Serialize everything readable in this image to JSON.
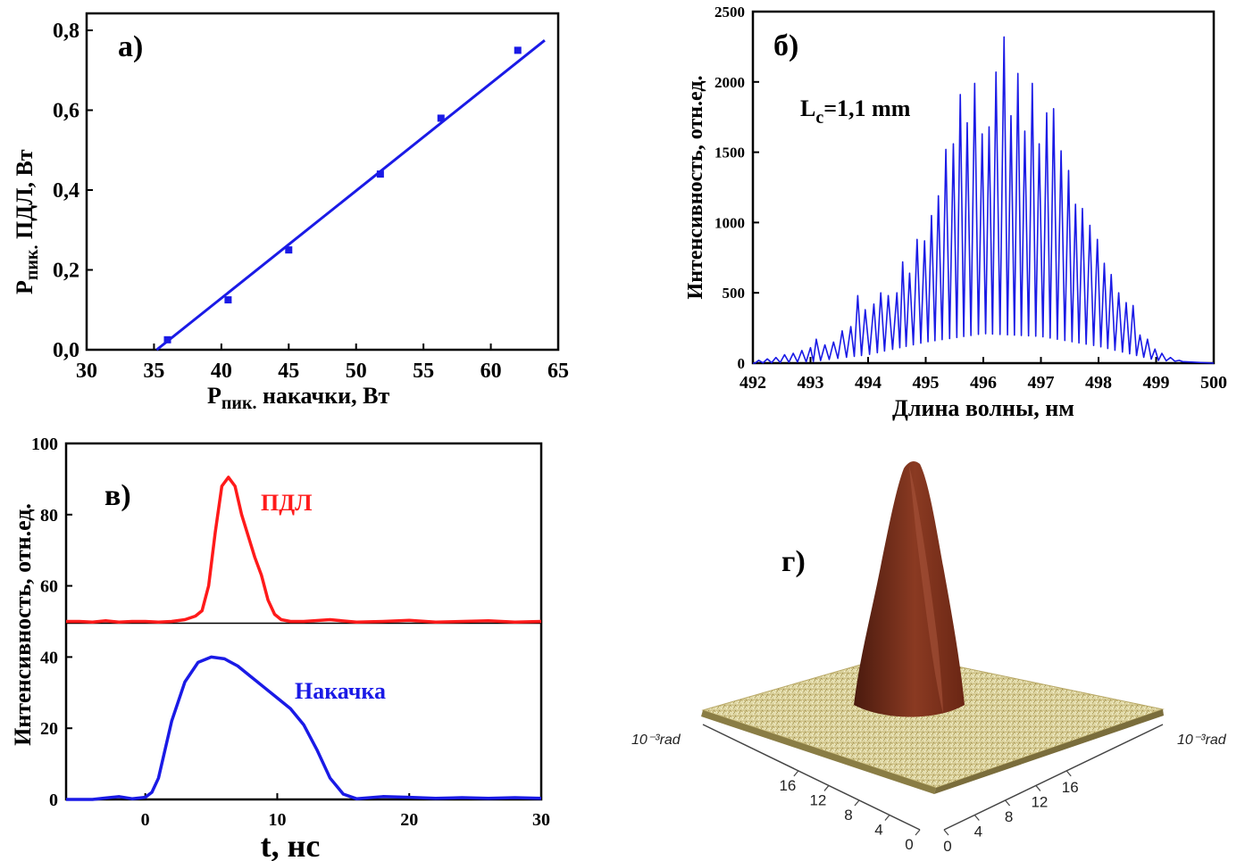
{
  "chart_data": [
    {
      "id": "a",
      "type": "scatter",
      "panel_label": "а)",
      "xlabel_main": "P",
      "xlabel_sub": "пик.",
      "xlabel_rest": " накачки, Вт",
      "ylabel_main": "P",
      "ylabel_sub": "пик.",
      "ylabel_rest": " ПДЛ, Вт",
      "xlim": [
        30,
        65
      ],
      "ylim": [
        0,
        0.8
      ],
      "xticks": [
        30,
        35,
        40,
        45,
        50,
        55,
        60,
        65
      ],
      "yticks": [
        0.0,
        0.2,
        0.4,
        0.6,
        0.8
      ],
      "ytick_labels": [
        "0,0",
        "0,2",
        "0,4",
        "0,6",
        "0,8"
      ],
      "points": {
        "x": [
          36.0,
          40.5,
          45.0,
          51.8,
          56.3,
          62.0
        ],
        "y": [
          0.025,
          0.125,
          0.25,
          0.44,
          0.58,
          0.75
        ]
      },
      "fit_line": {
        "x": [
          35.2,
          64.0
        ],
        "y": [
          0.0,
          0.775
        ]
      },
      "color": "#1a1ae6"
    },
    {
      "id": "b",
      "type": "line",
      "panel_label": "б)",
      "annotation_main": "L",
      "annotation_sub": "c",
      "annotation_rest": "=1,1 mm",
      "xlabel": "Длина волны, нм",
      "ylabel": "Интенсивность, отн.ед.",
      "xlim": [
        492,
        500
      ],
      "ylim": [
        0,
        2500
      ],
      "xticks": [
        492,
        493,
        494,
        495,
        496,
        497,
        498,
        499,
        500
      ],
      "yticks": [
        0,
        500,
        1000,
        1500,
        2000,
        2500
      ],
      "peak_wavelengths": [
        492.1,
        492.25,
        492.4,
        492.55,
        492.7,
        492.85,
        493.0,
        493.1,
        493.25,
        493.4,
        493.55,
        493.7,
        493.82,
        493.95,
        494.1,
        494.22,
        494.35,
        494.5,
        494.6,
        494.72,
        494.85,
        494.98,
        495.1,
        495.22,
        495.35,
        495.48,
        495.6,
        495.72,
        495.85,
        495.98,
        496.1,
        496.22,
        496.36,
        496.48,
        496.6,
        496.72,
        496.85,
        496.97,
        497.1,
        497.22,
        497.35,
        497.48,
        497.6,
        497.72,
        497.85,
        497.98,
        498.1,
        498.22,
        498.35,
        498.48,
        498.6,
        498.72,
        498.85,
        498.98,
        499.1,
        499.25,
        499.4
      ],
      "peak_values": [
        20,
        30,
        40,
        60,
        70,
        90,
        110,
        170,
        130,
        150,
        230,
        260,
        480,
        380,
        420,
        500,
        480,
        500,
        720,
        640,
        880,
        870,
        1050,
        1190,
        1520,
        1560,
        1910,
        1710,
        1990,
        1630,
        1680,
        2070,
        2320,
        1760,
        2060,
        1650,
        1990,
        1560,
        1780,
        1810,
        1510,
        1370,
        1130,
        1100,
        980,
        880,
        710,
        630,
        500,
        430,
        410,
        200,
        170,
        100,
        70,
        40,
        20
      ],
      "baseline": {
        "x": [
          492,
          493,
          494,
          495,
          496,
          497,
          498,
          499,
          500
        ],
        "y": [
          0,
          10,
          60,
          150,
          210,
          190,
          120,
          20,
          0
        ]
      },
      "color": "#1a1ae6"
    },
    {
      "id": "c",
      "type": "line",
      "panel_label": "в)",
      "xlabel": "t, нс",
      "ylabel": "Интенсивность, отн.ед.",
      "xlim": [
        -6,
        30
      ],
      "ylim": [
        0,
        100
      ],
      "xticks": [
        0,
        10,
        20,
        30
      ],
      "yticks": [
        0,
        20,
        40,
        60,
        80,
        100
      ],
      "divider_y": 49.5,
      "series": [
        {
          "name": "ПДЛ",
          "color": "#ff1a1a",
          "x": [
            -6,
            -5,
            -4,
            -3,
            -2,
            -1,
            0,
            1,
            2,
            3,
            3.8,
            4.3,
            4.8,
            5.3,
            5.8,
            6.3,
            6.8,
            7.3,
            7.8,
            8.3,
            8.8,
            9.3,
            9.8,
            10.3,
            11,
            12,
            14,
            16,
            18,
            20,
            22,
            24,
            26,
            28,
            30
          ],
          "y": [
            50,
            50,
            49.8,
            50.2,
            49.8,
            50,
            50,
            49.8,
            50,
            50.5,
            51.5,
            53,
            60,
            75,
            88,
            90.5,
            88,
            80,
            74,
            68,
            63,
            56,
            52,
            50.5,
            50,
            50,
            50.5,
            49.8,
            50,
            50.3,
            49.8,
            50,
            50.2,
            49.8,
            50
          ]
        },
        {
          "name": "Накачка",
          "color": "#1a1ae6",
          "x": [
            -6,
            -4,
            -3,
            -2,
            -1,
            0,
            0.5,
            1,
            1.5,
            2,
            3,
            4,
            5,
            6,
            7,
            8,
            9,
            10,
            11,
            12,
            13,
            14,
            15,
            16,
            18,
            20,
            22,
            24,
            26,
            28,
            30
          ],
          "y": [
            0,
            0,
            0.4,
            0.8,
            0.2,
            0.6,
            2,
            6,
            14,
            22,
            33,
            38.5,
            40,
            39.5,
            37.5,
            34.5,
            31.5,
            28.5,
            25.5,
            21,
            14,
            6,
            1.5,
            0.2,
            0.8,
            0.6,
            0.3,
            0.5,
            0.3,
            0.5,
            0.3
          ]
        }
      ]
    },
    {
      "id": "d",
      "type": "surface",
      "panel_label": "г)",
      "axis_unit_left": "10⁻³rad",
      "axis_unit_right": "10⁻³rad",
      "left_axis_ticks": [
        16,
        12,
        8,
        4,
        0
      ],
      "right_axis_ticks": [
        0,
        4,
        8,
        12,
        16
      ],
      "color": "#8a2f1c"
    }
  ]
}
